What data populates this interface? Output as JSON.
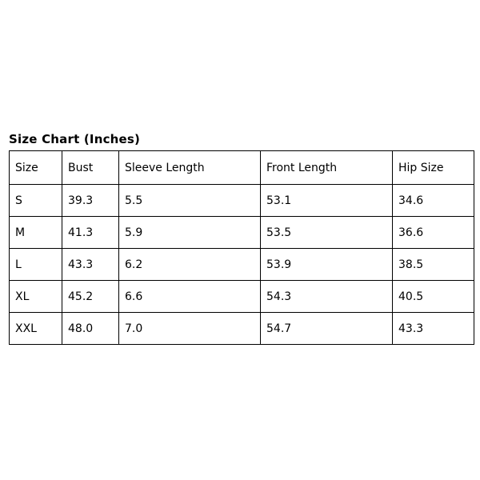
{
  "title": "Size Chart (Inches)",
  "table": {
    "headers": [
      "Size",
      "Bust",
      "Sleeve Length",
      "Front Length",
      "Hip Size"
    ],
    "rows": [
      [
        "S",
        "39.3",
        "5.5",
        "53.1",
        "34.6"
      ],
      [
        "M",
        "41.3",
        "5.9",
        "53.5",
        "36.6"
      ],
      [
        "L",
        "43.3",
        "6.2",
        "53.9",
        "38.5"
      ],
      [
        "XL",
        "45.2",
        "6.6",
        "54.3",
        "40.5"
      ],
      [
        "XXL",
        "48.0",
        "7.0",
        "54.7",
        "43.3"
      ]
    ]
  },
  "colors": {
    "background": "#ffffff",
    "border": "#000000",
    "text": "#000000"
  }
}
